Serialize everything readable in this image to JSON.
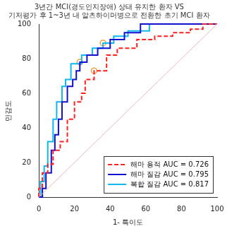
{
  "chart_data": {
    "type": "line",
    "title": [
      "3년간 MCI(경도인지장애) 상태 유지한 환자 VS",
      "기저평가 후 1~3년 내 알츠하이머병으로 전환한 초기 MCI 환자"
    ],
    "x_label": "1- 특이도",
    "y_label": "민감도",
    "xlim": [
      0,
      100
    ],
    "ylim": [
      0,
      100
    ],
    "xticks": [
      0,
      20,
      40,
      60,
      80,
      100
    ],
    "yticks": [
      0,
      20,
      40,
      60,
      80,
      100
    ],
    "grid": false,
    "legend": "bottom right",
    "diagonal": {
      "x": [
        0,
        100
      ],
      "y": [
        0,
        100
      ]
    },
    "series": [
      {
        "name": "해마 용적 AUC = 0.726",
        "color": "#ff2020",
        "line_style": "dashed",
        "x": [
          0,
          0,
          2,
          2,
          5,
          5,
          8,
          8,
          12,
          12,
          16,
          16,
          20,
          20,
          24,
          24,
          26,
          26,
          31,
          31,
          38,
          38,
          44,
          44,
          55,
          55,
          65,
          65,
          75,
          75,
          85,
          85,
          92,
          92,
          100
        ],
        "values": [
          0,
          5,
          5,
          14,
          14,
          19,
          19,
          27,
          27,
          32,
          32,
          45,
          45,
          55,
          55,
          60,
          60,
          68,
          68,
          73,
          73,
          82,
          82,
          86,
          86,
          91,
          91,
          93,
          93,
          95,
          95,
          97,
          97,
          100,
          100
        ],
        "cutoff": {
          "x": 31,
          "y": 73
        }
      },
      {
        "name": "해마 질감 AUC = 0.795",
        "color": "#1010d0",
        "line_style": "solid",
        "x": [
          0,
          2,
          2,
          4,
          4,
          7,
          7,
          9,
          9,
          11,
          11,
          13,
          13,
          16,
          16,
          19,
          19,
          21,
          21,
          23,
          23,
          27,
          27,
          33,
          33,
          40,
          40,
          48,
          48,
          57,
          57,
          100
        ],
        "values": [
          0,
          0,
          5,
          5,
          14,
          14,
          27,
          27,
          36,
          36,
          45,
          45,
          55,
          55,
          64,
          64,
          68,
          68,
          73,
          73,
          78,
          78,
          82,
          82,
          86,
          86,
          91,
          91,
          95,
          95,
          100,
          100
        ],
        "cutoff": {
          "x": 23,
          "y": 78
        }
      },
      {
        "name": "복합 질감 AUC = 0.817",
        "color": "#10b8f0",
        "line_style": "solid",
        "x": [
          0,
          1,
          1,
          3,
          3,
          5,
          5,
          8,
          8,
          10,
          10,
          13,
          13,
          15,
          15,
          18,
          18,
          24,
          24,
          30,
          30,
          36,
          36,
          42,
          42,
          50,
          50,
          62,
          62,
          100
        ],
        "values": [
          0,
          0,
          9,
          9,
          18,
          18,
          32,
          32,
          45,
          45,
          55,
          55,
          64,
          64,
          68,
          68,
          77,
          77,
          82,
          82,
          86,
          86,
          89,
          89,
          93,
          93,
          96,
          96,
          100,
          100
        ],
        "cutoff": {
          "x": 36,
          "y": 89
        }
      }
    ]
  }
}
